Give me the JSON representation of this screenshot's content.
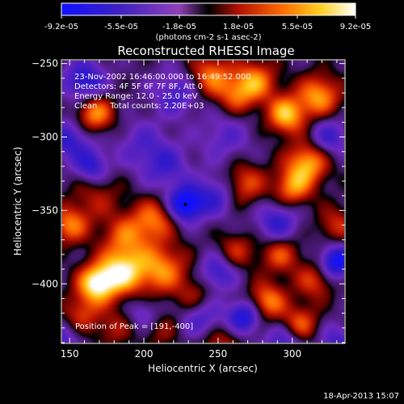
{
  "chart_data": {
    "type": "heatmap",
    "title": "Reconstructed RHESSI Image",
    "xlabel": "Heliocentric X (arcsec)",
    "ylabel": "Heliocentric Y (arcsec)",
    "xlim": [
      145,
      335
    ],
    "ylim": [
      -440,
      -248
    ],
    "xticks": [
      150,
      200,
      250,
      300
    ],
    "yticks": [
      -250,
      -300,
      -350,
      -400
    ],
    "colorbar": {
      "range": [
        -9.2e-05,
        9.2e-05
      ],
      "tick_labels": [
        "-9.2e-05",
        "-5.5e-05",
        "-1.8e-05",
        "1.8e-05",
        "5.5e-05",
        "9.2e-05"
      ],
      "unit_label": "(photons cm-2 s-1 asec-2)",
      "colormap": "rhessi-blue-purple-red-yellow-white"
    },
    "annotations": [
      "23-Nov-2002 16:46:00.000 to 16:49:52.000",
      "Detectors: 4F 5F 6F 7F 8F, Att 0",
      "Energy Range: 12.0 - 25.0 keV",
      "Clean     Total counts: 2.20E+03"
    ],
    "peak_label": "Position of Peak = [191,-400]",
    "peak_position": [
      191,
      -400
    ],
    "marker_position": [
      228,
      -346
    ],
    "sources": [
      {
        "x": 168,
        "y": -400,
        "value": 9.2e-05,
        "sigma": 9
      },
      {
        "x": 185,
        "y": -392,
        "value": 8.5e-05,
        "sigma": 11
      },
      {
        "x": 212,
        "y": -390,
        "value": 6.5e-05,
        "sigma": 12
      },
      {
        "x": 150,
        "y": -360,
        "value": 6e-05,
        "sigma": 9
      },
      {
        "x": 188,
        "y": -368,
        "value": 5e-05,
        "sigma": 11
      },
      {
        "x": 207,
        "y": -356,
        "value": 5.5e-05,
        "sigma": 10
      },
      {
        "x": 168,
        "y": -340,
        "value": 3e-05,
        "sigma": 12
      },
      {
        "x": 167,
        "y": -284,
        "value": 7e-05,
        "sigma": 9
      },
      {
        "x": 158,
        "y": -420,
        "value": 4e-05,
        "sigma": 9
      },
      {
        "x": 180,
        "y": -430,
        "value": 3e-05,
        "sigma": 9
      },
      {
        "x": 212,
        "y": -432,
        "value": 2.5e-05,
        "sigma": 9
      },
      {
        "x": 250,
        "y": -440,
        "value": 4e-05,
        "sigma": 10
      },
      {
        "x": 245,
        "y": -258,
        "value": 6e-05,
        "sigma": 10
      },
      {
        "x": 275,
        "y": -262,
        "value": 6.5e-05,
        "sigma": 10
      },
      {
        "x": 262,
        "y": -272,
        "value": 4.5e-05,
        "sigma": 9
      },
      {
        "x": 296,
        "y": -285,
        "value": 8e-05,
        "sigma": 9
      },
      {
        "x": 318,
        "y": -272,
        "value": 7e-05,
        "sigma": 10
      },
      {
        "x": 310,
        "y": -318,
        "value": 7.5e-05,
        "sigma": 10
      },
      {
        "x": 300,
        "y": -335,
        "value": 6e-05,
        "sigma": 9
      },
      {
        "x": 268,
        "y": -332,
        "value": 5e-05,
        "sigma": 10
      },
      {
        "x": 330,
        "y": -360,
        "value": 4e-05,
        "sigma": 9
      },
      {
        "x": 262,
        "y": -378,
        "value": 4e-05,
        "sigma": 9
      },
      {
        "x": 292,
        "y": -380,
        "value": 5e-05,
        "sigma": 9
      },
      {
        "x": 315,
        "y": -398,
        "value": 4.5e-05,
        "sigma": 9
      },
      {
        "x": 283,
        "y": -412,
        "value": 6.5e-05,
        "sigma": 9
      },
      {
        "x": 305,
        "y": -428,
        "value": 5.5e-05,
        "sigma": 9
      },
      {
        "x": 235,
        "y": -408,
        "value": 3e-05,
        "sigma": 9
      },
      {
        "x": 160,
        "y": -262,
        "value": -6e-05,
        "sigma": 10
      },
      {
        "x": 150,
        "y": -302,
        "value": -5e-05,
        "sigma": 10
      },
      {
        "x": 222,
        "y": -270,
        "value": -4e-05,
        "sigma": 11
      },
      {
        "x": 198,
        "y": -305,
        "value": -3e-05,
        "sigma": 12
      },
      {
        "x": 215,
        "y": -320,
        "value": -4e-05,
        "sigma": 11
      },
      {
        "x": 165,
        "y": -320,
        "value": -5.5e-05,
        "sigma": 8
      },
      {
        "x": 228,
        "y": -346,
        "value": -9.2e-05,
        "sigma": 8
      },
      {
        "x": 248,
        "y": -340,
        "value": -4.5e-05,
        "sigma": 10
      },
      {
        "x": 255,
        "y": -300,
        "value": -3e-05,
        "sigma": 12
      },
      {
        "x": 290,
        "y": -358,
        "value": -5e-05,
        "sigma": 10
      },
      {
        "x": 330,
        "y": -385,
        "value": -8e-05,
        "sigma": 8
      },
      {
        "x": 325,
        "y": -300,
        "value": -4.5e-05,
        "sigma": 9
      },
      {
        "x": 250,
        "y": -392,
        "value": -5e-05,
        "sigma": 9
      },
      {
        "x": 240,
        "y": -425,
        "value": -4.5e-05,
        "sigma": 10
      },
      {
        "x": 268,
        "y": -422,
        "value": -7e-05,
        "sigma": 8
      },
      {
        "x": 295,
        "y": -440,
        "value": -5e-05,
        "sigma": 9
      },
      {
        "x": 330,
        "y": -440,
        "value": -4e-05,
        "sigma": 9
      },
      {
        "x": 200,
        "y": -420,
        "value": -3e-05,
        "sigma": 8
      },
      {
        "x": 145,
        "y": -438,
        "value": -3.5e-05,
        "sigma": 8
      }
    ]
  },
  "footer": {
    "timestamp": "18-Apr-2013 15:07"
  }
}
